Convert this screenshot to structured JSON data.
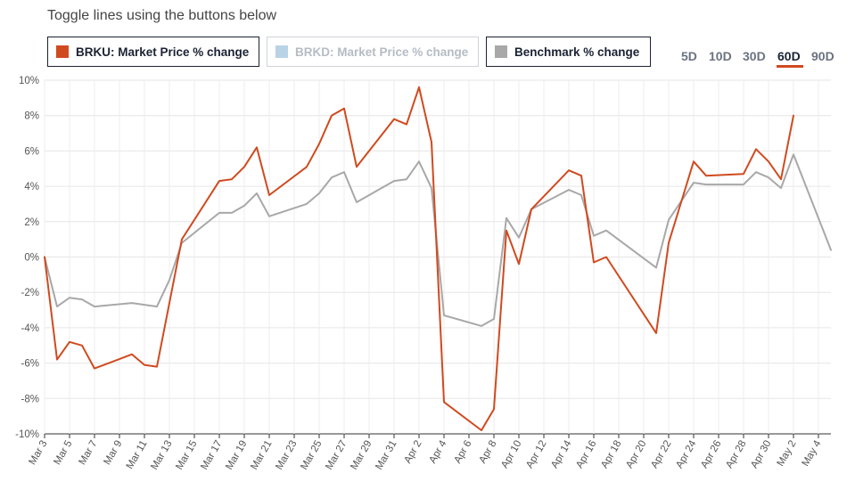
{
  "header": {
    "hint": "Toggle lines using the buttons below"
  },
  "legend": [
    {
      "id": "brku",
      "label": "BRKU: Market Price % change",
      "color": "#d04a1f",
      "active": true
    },
    {
      "id": "brkd",
      "label": "BRKD: Market Price % change",
      "color": "#b9d3e6",
      "active": false
    },
    {
      "id": "bench",
      "label": "Benchmark % change",
      "color": "#a8a8a8",
      "active": true
    }
  ],
  "ranges": [
    "5D",
    "10D",
    "30D",
    "60D",
    "90D"
  ],
  "active_range": "60D",
  "chart_data": {
    "type": "line",
    "ylim": [
      -10,
      10
    ],
    "y_ticks": [
      -10,
      -8,
      -6,
      -4,
      -2,
      0,
      2,
      4,
      6,
      8,
      10
    ],
    "y_tick_format": "%",
    "x_domain": [
      "2025-03-03",
      "2025-05-05"
    ],
    "x_ticks": [
      "Mar 3",
      "Mar 5",
      "Mar 7",
      "Mar 9",
      "Mar 11",
      "Mar 13",
      "Mar 15",
      "Mar 17",
      "Mar 19",
      "Mar 21",
      "Mar 23",
      "Mar 25",
      "Mar 27",
      "Mar 29",
      "Mar 31",
      "Apr 2",
      "Apr 4",
      "Apr 6",
      "Apr 8",
      "Apr 10",
      "Apr 12",
      "Apr 14",
      "Apr 16",
      "Apr 18",
      "Apr 20",
      "Apr 22",
      "Apr 24",
      "Apr 26",
      "Apr 28",
      "Apr 30",
      "May 2",
      "May 4"
    ],
    "grid": true,
    "legend_position": "top",
    "series": [
      {
        "name": "BRKU: Market Price % change",
        "color": "#d04a1f",
        "points": [
          [
            "2025-03-03",
            0
          ],
          [
            "2025-03-04",
            -5.8
          ],
          [
            "2025-03-05",
            -4.8
          ],
          [
            "2025-03-06",
            -5.0
          ],
          [
            "2025-03-07",
            -6.3
          ],
          [
            "2025-03-10",
            -5.5
          ],
          [
            "2025-03-11",
            -6.1
          ],
          [
            "2025-03-12",
            -6.2
          ],
          [
            "2025-03-14",
            1.0
          ],
          [
            "2025-03-17",
            4.3
          ],
          [
            "2025-03-18",
            4.4
          ],
          [
            "2025-03-19",
            5.1
          ],
          [
            "2025-03-20",
            6.2
          ],
          [
            "2025-03-21",
            3.5
          ],
          [
            "2025-03-24",
            5.1
          ],
          [
            "2025-03-25",
            6.4
          ],
          [
            "2025-03-26",
            8.0
          ],
          [
            "2025-03-27",
            8.4
          ],
          [
            "2025-03-28",
            5.1
          ],
          [
            "2025-03-31",
            7.8
          ],
          [
            "2025-04-01",
            7.5
          ],
          [
            "2025-04-02",
            9.6
          ],
          [
            "2025-04-03",
            6.5
          ],
          [
            "2025-04-04",
            -8.2
          ],
          [
            "2025-04-07",
            -9.8
          ],
          [
            "2025-04-08",
            -8.6
          ],
          [
            "2025-04-09",
            1.5
          ],
          [
            "2025-04-10",
            -0.4
          ],
          [
            "2025-04-11",
            2.7
          ],
          [
            "2025-04-14",
            4.9
          ],
          [
            "2025-04-15",
            4.6
          ],
          [
            "2025-04-16",
            -0.3
          ],
          [
            "2025-04-17",
            0.0
          ],
          [
            "2025-04-21",
            -4.3
          ],
          [
            "2025-04-22",
            0.8
          ],
          [
            "2025-04-23",
            3.1
          ],
          [
            "2025-04-24",
            5.4
          ],
          [
            "2025-04-25",
            4.6
          ],
          [
            "2025-04-28",
            4.7
          ],
          [
            "2025-04-29",
            6.1
          ],
          [
            "2025-04-30",
            5.4
          ],
          [
            "2025-05-01",
            4.4
          ],
          [
            "2025-05-02",
            8.0
          ]
        ]
      },
      {
        "name": "Benchmark % change",
        "color": "#a8a8a8",
        "points": [
          [
            "2025-03-03",
            0
          ],
          [
            "2025-03-04",
            -2.8
          ],
          [
            "2025-03-05",
            -2.3
          ],
          [
            "2025-03-06",
            -2.4
          ],
          [
            "2025-03-07",
            -2.8
          ],
          [
            "2025-03-10",
            -2.6
          ],
          [
            "2025-03-11",
            -2.7
          ],
          [
            "2025-03-12",
            -2.8
          ],
          [
            "2025-03-13",
            -1.3
          ],
          [
            "2025-03-14",
            0.8
          ],
          [
            "2025-03-17",
            2.5
          ],
          [
            "2025-03-18",
            2.5
          ],
          [
            "2025-03-19",
            2.9
          ],
          [
            "2025-03-20",
            3.6
          ],
          [
            "2025-03-21",
            2.3
          ],
          [
            "2025-03-24",
            3.0
          ],
          [
            "2025-03-25",
            3.6
          ],
          [
            "2025-03-26",
            4.5
          ],
          [
            "2025-03-27",
            4.8
          ],
          [
            "2025-03-28",
            3.1
          ],
          [
            "2025-03-31",
            4.3
          ],
          [
            "2025-04-01",
            4.4
          ],
          [
            "2025-04-02",
            5.4
          ],
          [
            "2025-04-03",
            3.9
          ],
          [
            "2025-04-04",
            -3.3
          ],
          [
            "2025-04-07",
            -3.9
          ],
          [
            "2025-04-08",
            -3.5
          ],
          [
            "2025-04-09",
            2.2
          ],
          [
            "2025-04-10",
            1.1
          ],
          [
            "2025-04-11",
            2.7
          ],
          [
            "2025-04-14",
            3.8
          ],
          [
            "2025-04-15",
            3.5
          ],
          [
            "2025-04-16",
            1.2
          ],
          [
            "2025-04-17",
            1.5
          ],
          [
            "2025-04-21",
            -0.6
          ],
          [
            "2025-04-22",
            2.1
          ],
          [
            "2025-04-24",
            4.2
          ],
          [
            "2025-04-25",
            4.1
          ],
          [
            "2025-04-28",
            4.1
          ],
          [
            "2025-04-29",
            4.8
          ],
          [
            "2025-04-30",
            4.5
          ],
          [
            "2025-05-01",
            3.9
          ],
          [
            "2025-05-02",
            5.8
          ],
          [
            "2025-05-05",
            0.4
          ]
        ]
      }
    ]
  }
}
